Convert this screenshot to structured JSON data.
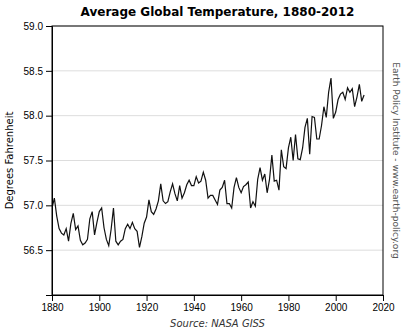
{
  "chart_data": {
    "type": "line",
    "title": "Average Global Temperature, 1880-2012",
    "xlabel": "Source: NASA GISS",
    "ylabel": "Degrees Fahrenheit",
    "y2label": "Earth Policy Institute - www.earth-policy.org",
    "color": "#111111",
    "grid": "y",
    "xlim": [
      1880,
      2020
    ],
    "ylim": [
      56.0,
      59.0
    ],
    "xticks": [
      1880,
      1900,
      1920,
      1940,
      1960,
      1980,
      2000,
      2020
    ],
    "yticks": [
      56.5,
      {
        "value": 57.0,
        "label": "57.0"
      },
      57.5,
      {
        "value": 58.0,
        "label": "58.0"
      },
      58.5,
      {
        "value": 59.0,
        "label": "59.0"
      }
    ],
    "x": [
      1880,
      1881,
      1882,
      1883,
      1884,
      1885,
      1886,
      1887,
      1888,
      1889,
      1890,
      1891,
      1892,
      1893,
      1894,
      1895,
      1896,
      1897,
      1898,
      1899,
      1900,
      1901,
      1902,
      1903,
      1904,
      1905,
      1906,
      1907,
      1908,
      1909,
      1910,
      1911,
      1912,
      1913,
      1914,
      1915,
      1916,
      1917,
      1918,
      1919,
      1920,
      1921,
      1922,
      1923,
      1924,
      1925,
      1926,
      1927,
      1928,
      1929,
      1930,
      1931,
      1932,
      1933,
      1934,
      1935,
      1936,
      1937,
      1938,
      1939,
      1940,
      1941,
      1942,
      1943,
      1944,
      1945,
      1946,
      1947,
      1948,
      1949,
      1950,
      1951,
      1952,
      1953,
      1954,
      1955,
      1956,
      1957,
      1958,
      1959,
      1960,
      1961,
      1962,
      1963,
      1964,
      1965,
      1966,
      1967,
      1968,
      1969,
      1970,
      1971,
      1972,
      1973,
      1974,
      1975,
      1976,
      1977,
      1978,
      1979,
      1980,
      1981,
      1982,
      1983,
      1984,
      1985,
      1986,
      1987,
      1988,
      1989,
      1990,
      1991,
      1992,
      1993,
      1994,
      1995,
      1996,
      1997,
      1998,
      1999,
      2000,
      2001,
      2002,
      2003,
      2004,
      2005,
      2006,
      2007,
      2008,
      2009,
      2010,
      2011,
      2012
    ],
    "values": [
      56.97,
      57.08,
      56.88,
      56.74,
      56.69,
      56.67,
      56.74,
      56.6,
      56.8,
      56.91,
      56.73,
      56.77,
      56.61,
      56.56,
      56.58,
      56.62,
      56.85,
      56.93,
      56.67,
      56.81,
      56.93,
      56.97,
      56.75,
      56.62,
      56.55,
      56.73,
      56.97,
      56.6,
      56.56,
      56.6,
      56.62,
      56.74,
      56.79,
      56.74,
      56.81,
      56.74,
      56.71,
      56.53,
      56.65,
      56.8,
      56.87,
      57.06,
      56.93,
      56.9,
      56.96,
      57.05,
      57.24,
      57.05,
      57.02,
      57.04,
      57.15,
      57.24,
      57.13,
      57.05,
      57.22,
      57.08,
      57.14,
      57.23,
      57.28,
      57.22,
      57.22,
      57.32,
      57.25,
      57.27,
      57.37,
      57.28,
      57.08,
      57.11,
      57.11,
      57.06,
      57.01,
      57.17,
      57.2,
      57.28,
      57.02,
      57.02,
      56.97,
      57.2,
      57.31,
      57.2,
      57.14,
      57.21,
      57.23,
      57.26,
      56.97,
      57.04,
      56.99,
      57.29,
      57.42,
      57.28,
      57.35,
      57.14,
      57.29,
      57.56,
      57.27,
      57.28,
      57.17,
      57.62,
      57.43,
      57.41,
      57.64,
      57.76,
      57.5,
      57.79,
      57.52,
      57.51,
      57.64,
      57.87,
      57.97,
      57.57,
      57.99,
      57.98,
      57.74,
      57.74,
      57.89,
      58.1,
      57.98,
      58.26,
      58.42,
      57.97,
      58.04,
      58.18,
      58.24,
      58.26,
      58.18,
      58.31,
      58.26,
      58.3,
      58.1,
      58.21,
      58.35,
      58.16,
      58.23
    ]
  }
}
